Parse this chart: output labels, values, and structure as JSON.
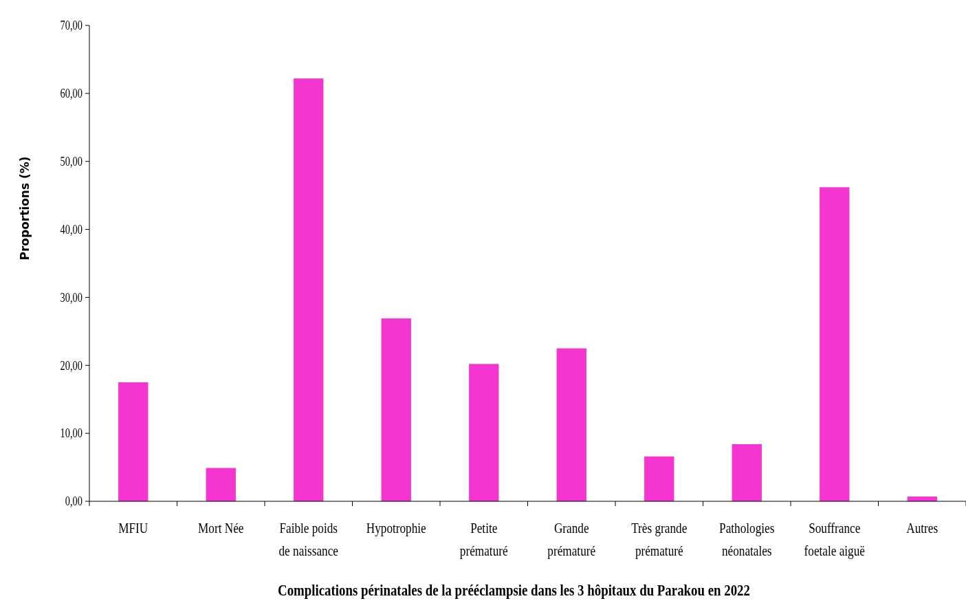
{
  "chart_data": {
    "type": "bar",
    "xlabel": "Complications périnatales de la prééclampsie dans les 3 hôpitaux du Parakou en 2022",
    "ylabel": "Proportions (%)",
    "categories": [
      "MFIU",
      "Mort Née",
      "Faible poids de naissance",
      "Hypotrophie",
      "Petite prématuré",
      "Grande prématuré",
      "Très grande prématuré",
      "Pathologies néonatales",
      "Souffrance foetale aiguë",
      "Autres"
    ],
    "values": [
      17.5,
      4.9,
      62.2,
      26.9,
      20.2,
      22.5,
      6.6,
      8.4,
      46.2,
      0.7
    ],
    "color": "#f535d0",
    "ylim": [
      0,
      70
    ],
    "yticks": [
      {
        "value": 0,
        "label": "0,00"
      },
      {
        "value": 10,
        "label": "10,00"
      },
      {
        "value": 20,
        "label": "20,00"
      },
      {
        "value": 30,
        "label": "30,00"
      },
      {
        "value": 40,
        "label": "40,00"
      },
      {
        "value": 50,
        "label": "50,00"
      },
      {
        "value": 60,
        "label": "60,00"
      },
      {
        "value": 70,
        "label": "70,00"
      }
    ],
    "grid": false
  }
}
